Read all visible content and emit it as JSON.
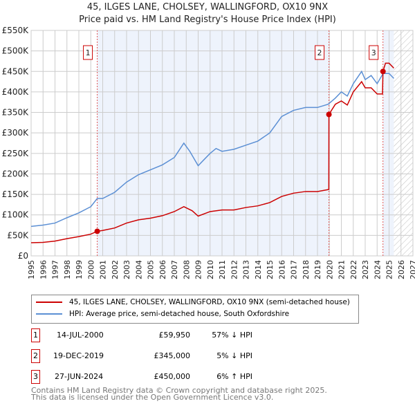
{
  "chart_data": {
    "type": "line",
    "title": "45, ILGES LANE, CHOLSEY, WALLINGFORD, OX10 9NX",
    "subtitle": "Price paid vs. HM Land Registry's House Price Index (HPI)",
    "xlim": [
      1995,
      2027
    ],
    "ylim": [
      0,
      550000
    ],
    "x_ticks": [
      "1995",
      "1996",
      "1997",
      "1998",
      "1999",
      "2000",
      "2001",
      "2002",
      "2003",
      "2004",
      "2005",
      "2006",
      "2007",
      "2008",
      "2009",
      "2010",
      "2011",
      "2012",
      "2013",
      "2014",
      "2015",
      "2016",
      "2017",
      "2018",
      "2019",
      "2020",
      "2021",
      "2022",
      "2023",
      "2024",
      "2025",
      "2026",
      "2027"
    ],
    "y_ticks": [
      {
        "v": 0,
        "label": "£0"
      },
      {
        "v": 50000,
        "label": "£50K"
      },
      {
        "v": 100000,
        "label": "£100K"
      },
      {
        "v": 150000,
        "label": "£150K"
      },
      {
        "v": 200000,
        "label": "£200K"
      },
      {
        "v": 250000,
        "label": "£250K"
      },
      {
        "v": 300000,
        "label": "£300K"
      },
      {
        "v": 350000,
        "label": "£350K"
      },
      {
        "v": 400000,
        "label": "£400K"
      },
      {
        "v": 450000,
        "label": "£450K"
      },
      {
        "v": 500000,
        "label": "£500K"
      },
      {
        "v": 550000,
        "label": "£550K"
      }
    ],
    "grid": true,
    "shaded_ranges": [
      [
        2000.54,
        2019.96
      ],
      [
        2024.49,
        2025.4
      ]
    ],
    "forecast_hatch_from": 2025.4,
    "series": [
      {
        "name": "45, ILGES LANE, CHOLSEY, WALLINGFORD, OX10 9NX (semi-detached house)",
        "color": "#cc0000",
        "x": [
          1995,
          1996,
          1997,
          1998,
          1999,
          2000,
          2000.54,
          2001,
          2002,
          2003,
          2004,
          2005,
          2006,
          2007,
          2007.8,
          2008.5,
          2009,
          2010,
          2011,
          2012,
          2013,
          2014,
          2015,
          2016,
          2017,
          2018,
          2019,
          2019.95,
          2019.96,
          2020.5,
          2021,
          2021.5,
          2022,
          2022.7,
          2023,
          2023.5,
          2024,
          2024.45,
          2024.49,
          2024.7,
          2025,
          2025.4
        ],
        "y": [
          32000,
          33000,
          36000,
          42000,
          47000,
          53000,
          60000,
          62000,
          68000,
          80000,
          88000,
          92000,
          98000,
          108000,
          120000,
          110000,
          97000,
          108000,
          112000,
          112000,
          118000,
          122000,
          130000,
          145000,
          153000,
          157000,
          157000,
          162000,
          345000,
          370000,
          378000,
          368000,
          400000,
          425000,
          410000,
          410000,
          395000,
          395000,
          450000,
          470000,
          470000,
          458000
        ]
      },
      {
        "name": "HPI: Average price, semi-detached house, South Oxfordshire",
        "color": "#5b8fd4",
        "x": [
          1995,
          1996,
          1997,
          1998,
          1999,
          2000,
          2000.54,
          2001,
          2002,
          2003,
          2004,
          2005,
          2006,
          2007,
          2007.8,
          2008.3,
          2009,
          2009.5,
          2010,
          2010.5,
          2011,
          2012,
          2013,
          2014,
          2015,
          2016,
          2017,
          2018,
          2019,
          2019.9,
          2020.5,
          2021,
          2021.5,
          2022,
          2022.7,
          2023,
          2023.5,
          2024,
          2024.5,
          2025,
          2025.4
        ],
        "y": [
          72000,
          75000,
          80000,
          93000,
          105000,
          120000,
          140000,
          140000,
          155000,
          180000,
          198000,
          210000,
          222000,
          240000,
          275000,
          255000,
          220000,
          235000,
          250000,
          262000,
          255000,
          260000,
          270000,
          280000,
          300000,
          340000,
          355000,
          362000,
          362000,
          370000,
          385000,
          400000,
          390000,
          420000,
          450000,
          430000,
          440000,
          420000,
          445000,
          445000,
          433000
        ]
      }
    ],
    "sales": [
      {
        "label": "1",
        "x": 2000.54,
        "y": 59950,
        "date": "14-JUL-2000",
        "price": "£59,950",
        "hpi": "57% ↓ HPI"
      },
      {
        "label": "2",
        "x": 2019.96,
        "y": 345000,
        "date": "19-DEC-2019",
        "price": "£345,000",
        "hpi": "5% ↓ HPI"
      },
      {
        "label": "3",
        "x": 2024.49,
        "y": 450000,
        "date": "27-JUN-2024",
        "price": "£450,000",
        "hpi": "6% ↑ HPI"
      }
    ]
  },
  "footer": {
    "line1": "Contains HM Land Registry data © Crown copyright and database right 2025.",
    "line2": "This data is licensed under the Open Government Licence v3.0."
  }
}
